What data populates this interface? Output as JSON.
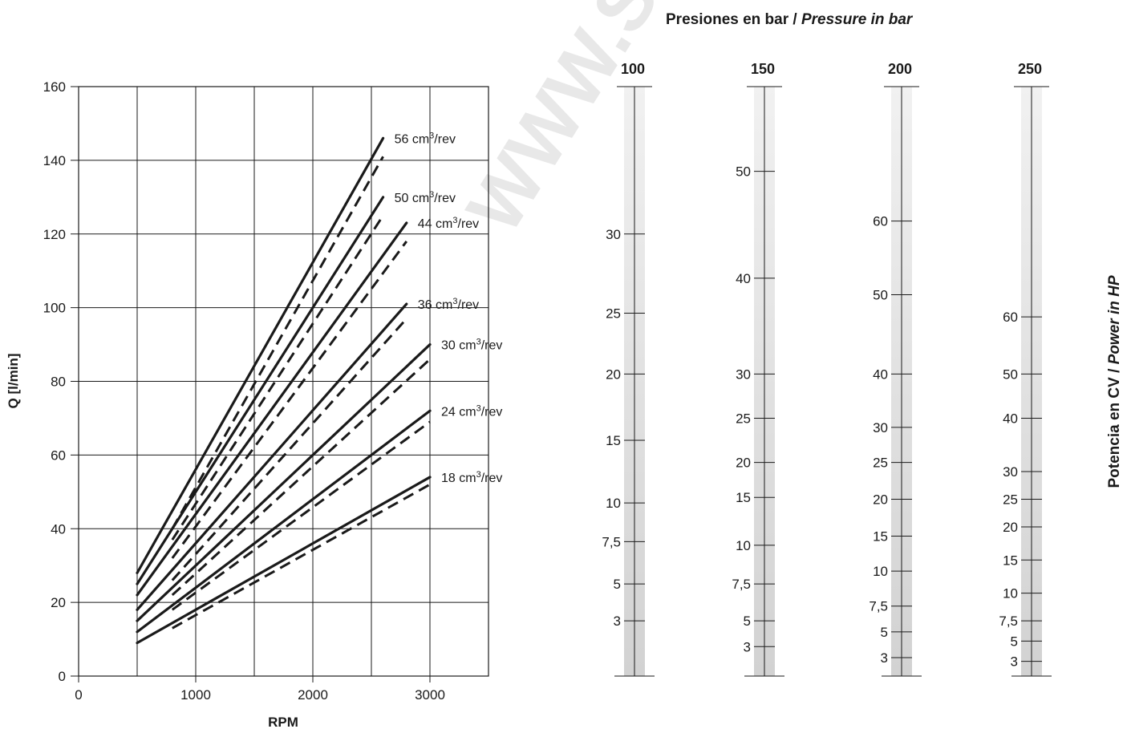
{
  "watermark": "WWW.SU",
  "chart_data": [
    {
      "type": "line",
      "xlabel": "RPM",
      "ylabel": "Q [l/min]",
      "xlim": [
        0,
        3500
      ],
      "ylim": [
        0,
        160
      ],
      "xticks": [
        0,
        1000,
        2000,
        3000
      ],
      "yticks": [
        0,
        20,
        40,
        60,
        80,
        100,
        120,
        140,
        160
      ],
      "grid": true,
      "series": [
        {
          "name": "56 cm³/rev",
          "solid": [
            [
              500,
              28
            ],
            [
              2600,
              146
            ]
          ],
          "dashed": [
            [
              800,
              40
            ],
            [
              2600,
              141
            ]
          ]
        },
        {
          "name": "50 cm³/rev",
          "solid": [
            [
              500,
              25
            ],
            [
              2600,
              130
            ]
          ],
          "dashed": [
            [
              800,
              37
            ],
            [
              2600,
              125
            ]
          ]
        },
        {
          "name": "44 cm³/rev",
          "solid": [
            [
              500,
              22
            ],
            [
              2800,
              123
            ]
          ],
          "dashed": [
            [
              800,
              32
            ],
            [
              2800,
              118
            ]
          ]
        },
        {
          "name": "36 cm³/rev",
          "solid": [
            [
              500,
              18
            ],
            [
              2800,
              101
            ]
          ],
          "dashed": [
            [
              800,
              26
            ],
            [
              2800,
              97
            ]
          ]
        },
        {
          "name": "30 cm³/rev",
          "solid": [
            [
              500,
              15
            ],
            [
              3000,
              90
            ]
          ],
          "dashed": [
            [
              800,
              22
            ],
            [
              3000,
              86
            ]
          ]
        },
        {
          "name": "24 cm³/rev",
          "solid": [
            [
              500,
              12
            ],
            [
              3000,
              72
            ]
          ],
          "dashed": [
            [
              800,
              18
            ],
            [
              3000,
              69
            ]
          ]
        },
        {
          "name": "18 cm³/rev",
          "solid": [
            [
              500,
              9
            ],
            [
              3000,
              54
            ]
          ],
          "dashed": [
            [
              800,
              13
            ],
            [
              3000,
              52
            ]
          ]
        }
      ]
    },
    {
      "type": "nomogram",
      "title_normal": "Presiones en bar / ",
      "title_italic": "Pressure in bar",
      "right_label_normal": "Potencia en CV / ",
      "right_label_italic": "Power in HP",
      "scales": [
        {
          "pressure": "100",
          "ticks": [
            {
              "label": "30",
              "q": 120
            },
            {
              "label": "25",
              "q": 98.5
            },
            {
              "label": "20",
              "q": 82
            },
            {
              "label": "15",
              "q": 64
            },
            {
              "label": "10",
              "q": 47
            },
            {
              "label": "7,5",
              "q": 36.5
            },
            {
              "label": "5",
              "q": 25
            },
            {
              "label": "3",
              "q": 15
            }
          ]
        },
        {
          "pressure": "150",
          "ticks": [
            {
              "label": "50",
              "q": 137
            },
            {
              "label": "40",
              "q": 108
            },
            {
              "label": "30",
              "q": 82
            },
            {
              "label": "25",
              "q": 70
            },
            {
              "label": "20",
              "q": 58
            },
            {
              "label": "15",
              "q": 48.5
            },
            {
              "label": "10",
              "q": 35.5
            },
            {
              "label": "7,5",
              "q": 25
            },
            {
              "label": "5",
              "q": 15
            },
            {
              "label": "3",
              "q": 8
            }
          ]
        },
        {
          "pressure": "200",
          "ticks": [
            {
              "label": "60",
              "q": 123.5
            },
            {
              "label": "50",
              "q": 103.5
            },
            {
              "label": "40",
              "q": 82
            },
            {
              "label": "30",
              "q": 67.5
            },
            {
              "label": "25",
              "q": 58
            },
            {
              "label": "20",
              "q": 48
            },
            {
              "label": "15",
              "q": 38
            },
            {
              "label": "10",
              "q": 28.5
            },
            {
              "label": "7,5",
              "q": 19
            },
            {
              "label": "5",
              "q": 12
            },
            {
              "label": "3",
              "q": 5
            }
          ]
        },
        {
          "pressure": "250",
          "ticks": [
            {
              "label": "60",
              "q": 97.5
            },
            {
              "label": "50",
              "q": 82
            },
            {
              "label": "40",
              "q": 70
            },
            {
              "label": "30",
              "q": 55.5
            },
            {
              "label": "25",
              "q": 48
            },
            {
              "label": "20",
              "q": 40.5
            },
            {
              "label": "15",
              "q": 31.5
            },
            {
              "label": "10",
              "q": 22.5
            },
            {
              "label": "7,5",
              "q": 15
            },
            {
              "label": "5",
              "q": 9.5
            },
            {
              "label": "3",
              "q": 4
            }
          ]
        }
      ]
    }
  ]
}
